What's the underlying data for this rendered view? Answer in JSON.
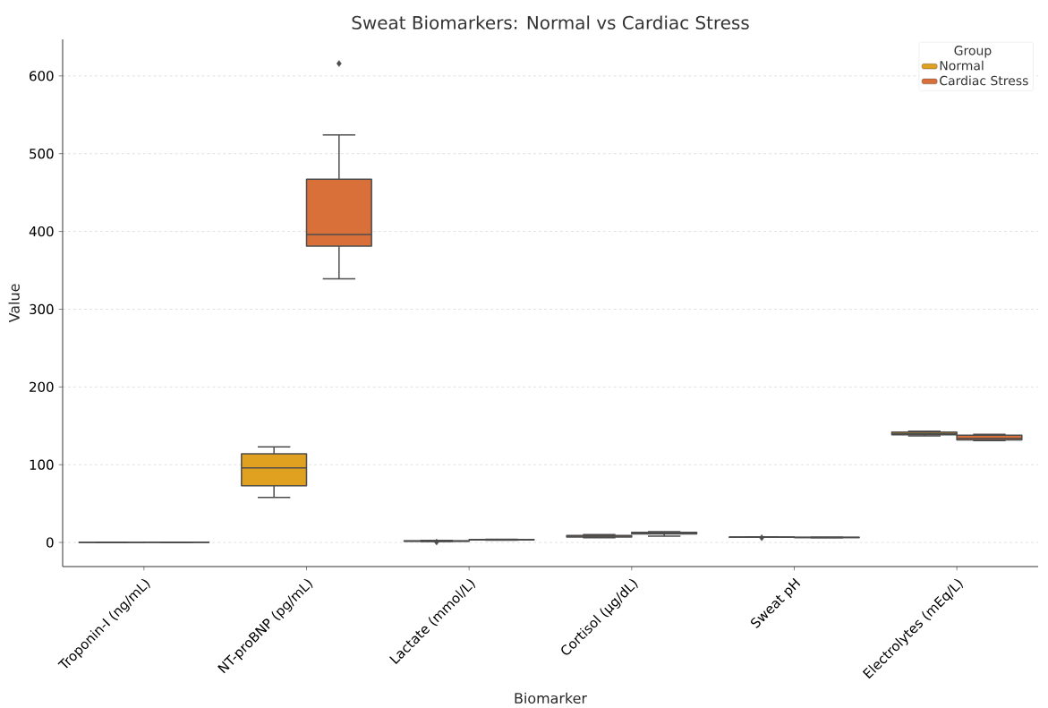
{
  "chart_data": {
    "type": "box",
    "title": "Sweat Biomarkers: Normal vs Cardiac Stress",
    "xlabel": "Biomarker",
    "ylabel": "Value",
    "legend_title": "Group",
    "categories": [
      "Troponin-I (ng/mL)",
      "NT-proBNP (pg/mL)",
      "Lactate (mmol/L)",
      "Cortisol (µg/dL)",
      "Sweat pH",
      "Electrolytes (mEq/L)"
    ],
    "series": [
      {
        "name": "Normal",
        "color": "#e0a020",
        "boxes": [
          {
            "low": 0.01,
            "q1": 0.02,
            "median": 0.03,
            "q3": 0.04,
            "high": 0.05
          },
          {
            "low": 58,
            "q1": 73,
            "median": 96,
            "q3": 114,
            "high": 123
          },
          {
            "low": 1.2,
            "q1": 1.6,
            "median": 1.9,
            "q3": 2.2,
            "high": 2.6,
            "outliers": [
              0.6
            ]
          },
          {
            "low": 6,
            "q1": 7,
            "median": 8,
            "q3": 9,
            "high": 10
          },
          {
            "low": 6.6,
            "q1": 6.8,
            "median": 7,
            "q3": 7.1,
            "high": 7.3,
            "outliers": [
              6
            ]
          },
          {
            "low": 137,
            "q1": 138.5,
            "median": 140,
            "q3": 142,
            "high": 143
          }
        ]
      },
      {
        "name": "Cardiac Stress",
        "color": "#d9703a",
        "boxes": [
          {
            "low": 0.1,
            "q1": 0.2,
            "median": 0.3,
            "q3": 0.4,
            "high": 0.5
          },
          {
            "low": 339,
            "q1": 381,
            "median": 396,
            "q3": 467,
            "high": 524,
            "outliers": [
              616
            ]
          },
          {
            "low": 3,
            "q1": 3.3,
            "median": 3.5,
            "q3": 3.8,
            "high": 4
          },
          {
            "low": 8,
            "q1": 11,
            "median": 12,
            "q3": 13,
            "high": 14
          },
          {
            "low": 6.2,
            "q1": 6.4,
            "median": 6.5,
            "q3": 6.6,
            "high": 6.8
          },
          {
            "low": 131,
            "q1": 132,
            "median": 134,
            "q3": 138,
            "high": 139
          }
        ]
      }
    ],
    "ylim": [
      -31,
      647
    ],
    "yticks": [
      0,
      100,
      200,
      300,
      400,
      500,
      600
    ],
    "grid": "y",
    "legend": "top right",
    "marker": "diamond"
  }
}
